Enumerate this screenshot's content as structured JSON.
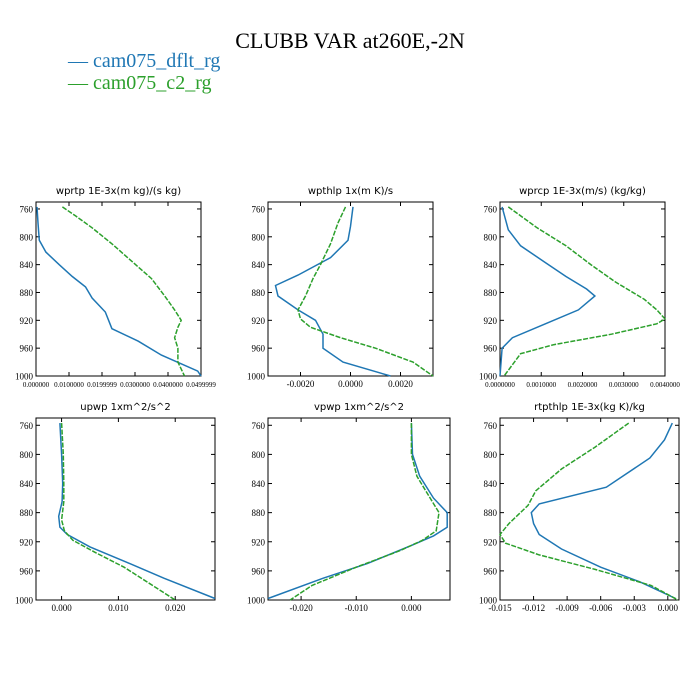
{
  "figure": {
    "title": "CLUBB VAR at260E,-2N",
    "legend": [
      {
        "label": "cam075_dflt_rg",
        "color": "#1f77b4"
      },
      {
        "label": "cam075_c2_rg",
        "color": "#2ca02c"
      }
    ]
  },
  "chart_data": [
    {
      "type": "line",
      "title": "wprtp   1E-3x(m kg)/(s kg)",
      "xlim": [
        0.0,
        0.05
      ],
      "ylim": [
        1000,
        750
      ],
      "yticks": [
        760,
        800,
        840,
        880,
        920,
        960,
        1000
      ],
      "xticks": [
        0.0,
        0.01,
        0.02,
        0.03,
        0.04,
        0.05
      ],
      "xticklabels": [
        "0.000000",
        "0.0100000",
        "0.0199999",
        "0.0300000",
        "0.0400000",
        "0.0499999"
      ],
      "series": [
        {
          "name": "cam075_dflt_rg",
          "points": [
            [
              0.0003,
              757
            ],
            [
              0.0006,
              780
            ],
            [
              0.001,
              805
            ],
            [
              0.003,
              822
            ],
            [
              0.007,
              840
            ],
            [
              0.011,
              857
            ],
            [
              0.015,
              872
            ],
            [
              0.017,
              888
            ],
            [
              0.021,
              908
            ],
            [
              0.022,
              920
            ],
            [
              0.023,
              932
            ],
            [
              0.031,
              950
            ],
            [
              0.038,
              970
            ],
            [
              0.049,
              993
            ],
            [
              0.05,
              1000
            ]
          ]
        },
        {
          "name": "cam075_c2_rg",
          "points": [
            [
              0.008,
              757
            ],
            [
              0.012,
              770
            ],
            [
              0.017,
              787
            ],
            [
              0.023,
              810
            ],
            [
              0.029,
              835
            ],
            [
              0.035,
              860
            ],
            [
              0.039,
              885
            ],
            [
              0.042,
              905
            ],
            [
              0.044,
              920
            ],
            [
              0.043,
              930
            ],
            [
              0.042,
              945
            ],
            [
              0.043,
              960
            ],
            [
              0.043,
              980
            ],
            [
              0.045,
              1000
            ]
          ]
        }
      ]
    },
    {
      "type": "line",
      "title": "wpthlp   1x(m K)/s",
      "xlim": [
        -0.0033,
        0.0033
      ],
      "ylim": [
        1000,
        750
      ],
      "yticks": [
        760,
        800,
        840,
        880,
        920,
        960,
        1000
      ],
      "xticks": [
        -0.002,
        0.0,
        0.002
      ],
      "xticklabels": [
        "-0.0020",
        "0.0000",
        "0.0020"
      ],
      "series": [
        {
          "name": "cam075_dflt_rg",
          "points": [
            [
              0.0001,
              757
            ],
            [
              0.0,
              785
            ],
            [
              -0.0001,
              805
            ],
            [
              -0.0008,
              830
            ],
            [
              -0.0021,
              855
            ],
            [
              -0.003,
              870
            ],
            [
              -0.0029,
              885
            ],
            [
              -0.0021,
              905
            ],
            [
              -0.0014,
              920
            ],
            [
              -0.0011,
              940
            ],
            [
              -0.0011,
              960
            ],
            [
              -0.0003,
              980
            ],
            [
              0.0016,
              1000
            ]
          ]
        },
        {
          "name": "cam075_c2_rg",
          "points": [
            [
              -0.0002,
              757
            ],
            [
              -0.0005,
              780
            ],
            [
              -0.0008,
              810
            ],
            [
              -0.0012,
              840
            ],
            [
              -0.0015,
              860
            ],
            [
              -0.0018,
              885
            ],
            [
              -0.0021,
              905
            ],
            [
              -0.002,
              918
            ],
            [
              -0.0016,
              930
            ],
            [
              -0.0004,
              945
            ],
            [
              0.001,
              960
            ],
            [
              0.0025,
              980
            ],
            [
              0.0033,
              1000
            ]
          ]
        }
      ]
    },
    {
      "type": "line",
      "title": "wprcp   1E-3x(m/s) (kg/kg)",
      "xlim": [
        0.0,
        0.004
      ],
      "ylim": [
        1000,
        750
      ],
      "yticks": [
        760,
        800,
        840,
        880,
        920,
        960,
        1000
      ],
      "xticks": [
        0.0,
        0.001,
        0.002,
        0.003,
        0.004
      ],
      "xticklabels": [
        "0.0000000",
        "0.0010000",
        "0.0020000",
        "0.0030000",
        "0.0040000"
      ],
      "series": [
        {
          "name": "cam075_dflt_rg",
          "points": [
            [
              5e-05,
              757
            ],
            [
              0.0002,
              790
            ],
            [
              0.0005,
              813
            ],
            [
              0.0011,
              837
            ],
            [
              0.0016,
              857
            ],
            [
              0.0021,
              875
            ],
            [
              0.0023,
              885
            ],
            [
              0.0019,
              905
            ],
            [
              0.0011,
              925
            ],
            [
              0.0003,
              945
            ],
            [
              5e-05,
              960
            ],
            [
              0.0,
              1000
            ]
          ]
        },
        {
          "name": "cam075_c2_rg",
          "points": [
            [
              0.0002,
              757
            ],
            [
              0.0009,
              787
            ],
            [
              0.0016,
              813
            ],
            [
              0.0022,
              840
            ],
            [
              0.0028,
              865
            ],
            [
              0.0035,
              890
            ],
            [
              0.0038,
              905
            ],
            [
              0.004,
              918
            ],
            [
              0.0038,
              925
            ],
            [
              0.0027,
              940
            ],
            [
              0.0013,
              955
            ],
            [
              0.0005,
              968
            ],
            [
              0.0001,
              1000
            ]
          ]
        }
      ]
    },
    {
      "type": "line",
      "title": "upwp   1xm^2/s^2",
      "xlim": [
        -0.0045,
        0.027
      ],
      "ylim": [
        1000,
        750
      ],
      "yticks": [
        760,
        800,
        840,
        880,
        920,
        960,
        1000
      ],
      "xticks": [
        0.0,
        0.01,
        0.02
      ],
      "xticklabels": [
        "0.000",
        "0.010",
        "0.020"
      ],
      "series": [
        {
          "name": "cam075_dflt_rg",
          "points": [
            [
              -0.0003,
              757
            ],
            [
              0.0,
              800
            ],
            [
              0.0002,
              840
            ],
            [
              0.0001,
              865
            ],
            [
              -0.0005,
              885
            ],
            [
              -0.0003,
              900
            ],
            [
              0.001,
              910
            ],
            [
              0.005,
              927
            ],
            [
              0.012,
              950
            ],
            [
              0.018,
              970
            ],
            [
              0.027,
              998
            ]
          ]
        },
        {
          "name": "cam075_c2_rg",
          "points": [
            [
              0.0,
              757
            ],
            [
              0.0003,
              800
            ],
            [
              0.0004,
              840
            ],
            [
              0.0004,
              865
            ],
            [
              0.0,
              890
            ],
            [
              0.0005,
              905
            ],
            [
              0.002,
              918
            ],
            [
              0.006,
              935
            ],
            [
              0.011,
              955
            ],
            [
              0.016,
              980
            ],
            [
              0.02,
              1000
            ]
          ]
        }
      ]
    },
    {
      "type": "line",
      "title": "vpwp   1xm^2/s^2",
      "xlim": [
        -0.026,
        0.007
      ],
      "ylim": [
        1000,
        750
      ],
      "yticks": [
        760,
        800,
        840,
        880,
        920,
        960,
        1000
      ],
      "xticks": [
        -0.02,
        -0.01,
        0.0
      ],
      "xticklabels": [
        "-0.020",
        "-0.010",
        "0.000"
      ],
      "series": [
        {
          "name": "cam075_dflt_rg",
          "points": [
            [
              0.0,
              757
            ],
            [
              0.0002,
              800
            ],
            [
              0.0015,
              830
            ],
            [
              0.004,
              860
            ],
            [
              0.0065,
              880
            ],
            [
              0.0065,
              900
            ],
            [
              0.004,
              912
            ],
            [
              0.0,
              925
            ],
            [
              -0.008,
              950
            ],
            [
              -0.016,
              970
            ],
            [
              -0.026,
              998
            ]
          ]
        },
        {
          "name": "cam075_c2_rg",
          "points": [
            [
              0.0,
              757
            ],
            [
              0.0,
              800
            ],
            [
              0.001,
              830
            ],
            [
              0.003,
              855
            ],
            [
              0.005,
              880
            ],
            [
              0.0045,
              905
            ],
            [
              0.002,
              918
            ],
            [
              -0.002,
              932
            ],
            [
              -0.01,
              955
            ],
            [
              -0.018,
              980
            ],
            [
              -0.022,
              1000
            ]
          ]
        }
      ]
    },
    {
      "type": "line",
      "title": "rtpthlp   1E-3x(kg K)/kg",
      "xlim": [
        -0.015,
        0.001
      ],
      "ylim": [
        1000,
        750
      ],
      "yticks": [
        760,
        800,
        840,
        880,
        920,
        960,
        1000
      ],
      "xticks": [
        -0.015,
        -0.012,
        -0.009,
        -0.006,
        -0.003,
        0.0
      ],
      "xticklabels": [
        "-0.015",
        "-0.012",
        "-0.009",
        "-0.006",
        "-0.003",
        "0.000"
      ],
      "series": [
        {
          "name": "cam075_dflt_rg",
          "points": [
            [
              0.0004,
              757
            ],
            [
              -0.0003,
              780
            ],
            [
              -0.0016,
              805
            ],
            [
              -0.0055,
              845
            ],
            [
              -0.0115,
              868
            ],
            [
              -0.0122,
              880
            ],
            [
              -0.012,
              895
            ],
            [
              -0.0115,
              910
            ],
            [
              -0.0095,
              930
            ],
            [
              -0.006,
              955
            ],
            [
              -0.0025,
              975
            ],
            [
              0.0007,
              998
            ]
          ]
        },
        {
          "name": "cam075_c2_rg",
          "points": [
            [
              -0.0035,
              757
            ],
            [
              -0.0065,
              790
            ],
            [
              -0.0095,
              820
            ],
            [
              -0.0118,
              850
            ],
            [
              -0.0125,
              870
            ],
            [
              -0.0142,
              895
            ],
            [
              -0.015,
              910
            ],
            [
              -0.0145,
              922
            ],
            [
              -0.0115,
              938
            ],
            [
              -0.0065,
              958
            ],
            [
              -0.0015,
              980
            ],
            [
              0.0009,
              1000
            ]
          ]
        }
      ]
    }
  ]
}
